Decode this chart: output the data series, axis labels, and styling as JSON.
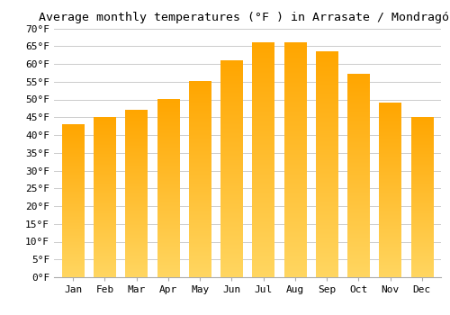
{
  "title": "Average monthly temperatures (°F ) in Arrasate / Mondragón",
  "months": [
    "Jan",
    "Feb",
    "Mar",
    "Apr",
    "May",
    "Jun",
    "Jul",
    "Aug",
    "Sep",
    "Oct",
    "Nov",
    "Dec"
  ],
  "values": [
    43,
    45,
    47,
    50,
    55,
    61,
    66,
    66,
    63.5,
    57,
    49,
    45
  ],
  "bar_color_top": "#FFA500",
  "bar_color_bottom": "#FFD070",
  "ylim": [
    0,
    70
  ],
  "background_color": "#ffffff",
  "grid_color": "#cccccc",
  "title_fontsize": 9.5,
  "tick_fontsize": 8,
  "font_family": "monospace"
}
